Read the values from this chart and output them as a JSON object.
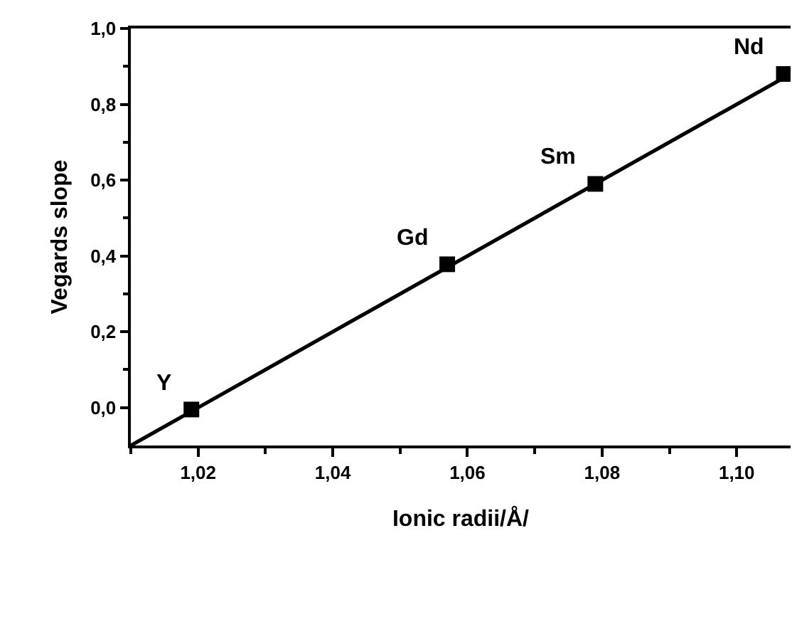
{
  "chart_data": {
    "type": "scatter",
    "xlabel": "Ionic radii/Å/",
    "ylabel": "Vegards slope",
    "x": [
      1.019,
      1.057,
      1.079,
      1.107
    ],
    "series": [
      {
        "color": "#000000",
        "values": [
          -0.005,
          0.378,
          0.59,
          0.88
        ],
        "marker": "square"
      },
      {
        "type": "line",
        "color": "#000000",
        "x": [
          1.01,
          1.108
        ],
        "values": [
          -0.1,
          0.88
        ],
        "marker": "none",
        "line_style": "solid"
      }
    ],
    "annotations": [
      {
        "text": "Y",
        "x": 1.019,
        "y": -0.005
      },
      {
        "text": "Gd",
        "x": 1.057,
        "y": 0.378
      },
      {
        "text": "Sm",
        "x": 1.079,
        "y": 0.59
      },
      {
        "text": "Nd",
        "x": 1.107,
        "y": 0.88
      }
    ],
    "xlim": [
      1.01,
      1.108
    ],
    "xticks": [
      {
        "value": 1.02,
        "label": "1,02"
      },
      {
        "value": 1.04,
        "label": "1,04"
      },
      {
        "value": 1.06,
        "label": "1,06"
      },
      {
        "value": 1.08,
        "label": "1,08"
      },
      {
        "value": 1.1,
        "label": "1,10"
      }
    ],
    "ylim": [
      -0.1,
      1.0
    ],
    "yticks": [
      {
        "value": 0.0,
        "label": "0,0"
      },
      {
        "value": 0.2,
        "label": "0,2"
      },
      {
        "value": 0.4,
        "label": "0,4"
      },
      {
        "value": 0.6,
        "label": "0,6"
      },
      {
        "value": 0.8,
        "label": "0,8"
      },
      {
        "value": 1.0,
        "label": "1,0"
      }
    ]
  }
}
